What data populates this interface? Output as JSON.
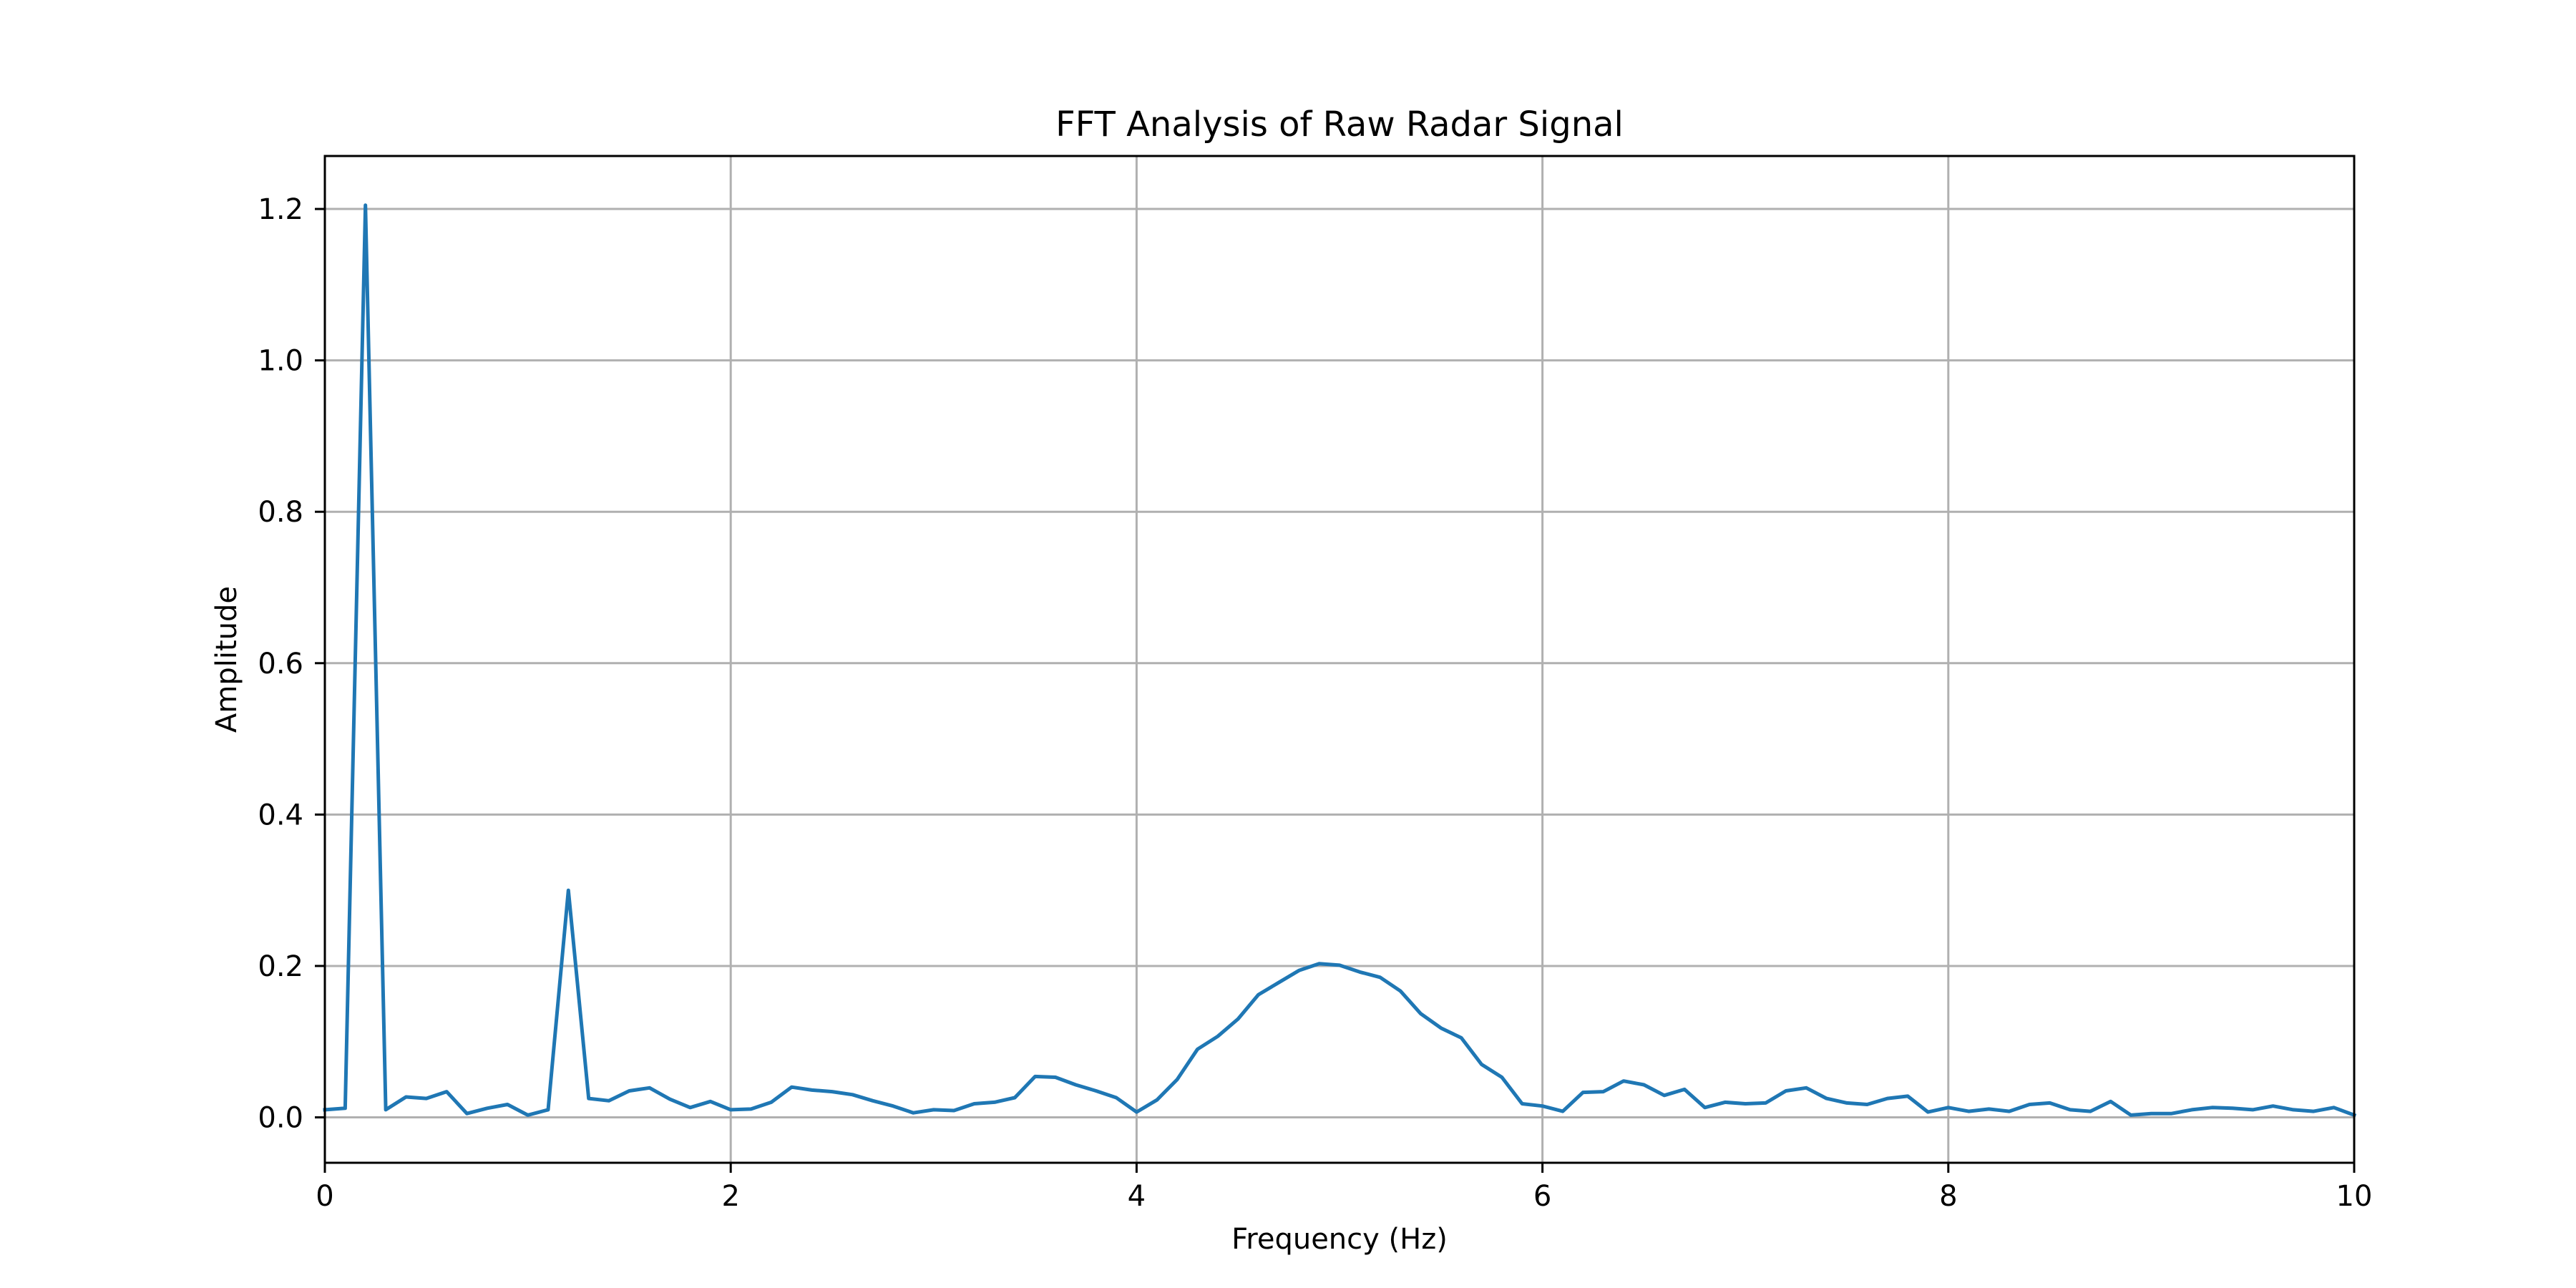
{
  "chart_data": {
    "type": "line",
    "title": "FFT Analysis of Raw Radar Signal",
    "xlabel": "Frequency (Hz)",
    "ylabel": "Amplitude",
    "xlim": [
      0,
      10
    ],
    "ylim": [
      -0.06,
      1.27
    ],
    "xticks": [
      0,
      2,
      4,
      6,
      8,
      10
    ],
    "xtick_labels": [
      "0",
      "2",
      "4",
      "6",
      "8",
      "10"
    ],
    "yticks": [
      0.0,
      0.2,
      0.4,
      0.6,
      0.8,
      1.0,
      1.2
    ],
    "ytick_labels": [
      "0.0",
      "0.2",
      "0.4",
      "0.6",
      "0.8",
      "1.0",
      "1.2"
    ],
    "grid": true,
    "colors": {
      "line": "#1f77b4",
      "grid": "#b0b0b0",
      "axes": "#000000"
    },
    "series": [
      {
        "x": [
          0.0,
          0.1,
          0.2,
          0.3,
          0.4,
          0.5,
          0.6,
          0.7,
          0.8,
          0.9,
          1.0,
          1.1,
          1.2,
          1.3,
          1.4,
          1.5,
          1.6,
          1.7,
          1.8,
          1.9,
          2.0,
          2.1,
          2.2,
          2.3,
          2.4,
          2.5,
          2.6,
          2.7,
          2.8,
          2.9,
          3.0,
          3.1,
          3.2,
          3.3,
          3.4,
          3.5,
          3.6,
          3.7,
          3.8,
          3.9,
          4.0,
          4.1,
          4.2,
          4.3,
          4.4,
          4.5,
          4.6,
          4.7,
          4.8,
          4.9,
          5.0,
          5.1,
          5.2,
          5.3,
          5.4,
          5.5,
          5.6,
          5.7,
          5.8,
          5.9,
          6.0,
          6.1,
          6.2,
          6.3,
          6.4,
          6.5,
          6.6,
          6.7,
          6.8,
          6.9,
          7.0,
          7.1,
          7.2,
          7.3,
          7.4,
          7.5,
          7.6,
          7.7,
          7.8,
          7.9,
          8.0,
          8.1,
          8.2,
          8.3,
          8.4,
          8.5,
          8.6,
          8.7,
          8.8,
          8.9,
          9.0,
          9.1,
          9.2,
          9.3,
          9.4,
          9.5,
          9.6,
          9.7,
          9.8,
          9.9,
          10.0
        ],
        "y": [
          0.01,
          0.012,
          1.205,
          0.01,
          0.027,
          0.025,
          0.034,
          0.005,
          0.012,
          0.017,
          0.003,
          0.01,
          0.3,
          0.025,
          0.022,
          0.035,
          0.039,
          0.024,
          0.013,
          0.021,
          0.01,
          0.011,
          0.02,
          0.04,
          0.036,
          0.034,
          0.03,
          0.022,
          0.015,
          0.006,
          0.01,
          0.009,
          0.018,
          0.02,
          0.026,
          0.054,
          0.053,
          0.043,
          0.035,
          0.026,
          0.007,
          0.023,
          0.05,
          0.09,
          0.107,
          0.13,
          0.162,
          0.178,
          0.194,
          0.203,
          0.201,
          0.192,
          0.185,
          0.167,
          0.137,
          0.118,
          0.105,
          0.07,
          0.053,
          0.018,
          0.015,
          0.008,
          0.033,
          0.034,
          0.048,
          0.043,
          0.029,
          0.037,
          0.013,
          0.02,
          0.018,
          0.019,
          0.035,
          0.039,
          0.025,
          0.019,
          0.017,
          0.025,
          0.028,
          0.007,
          0.013,
          0.008,
          0.011,
          0.008,
          0.017,
          0.019,
          0.01,
          0.008,
          0.021,
          0.003,
          0.005,
          0.005,
          0.01,
          0.013,
          0.012,
          0.01,
          0.015,
          0.01,
          0.008,
          0.013,
          0.003
        ]
      }
    ]
  }
}
